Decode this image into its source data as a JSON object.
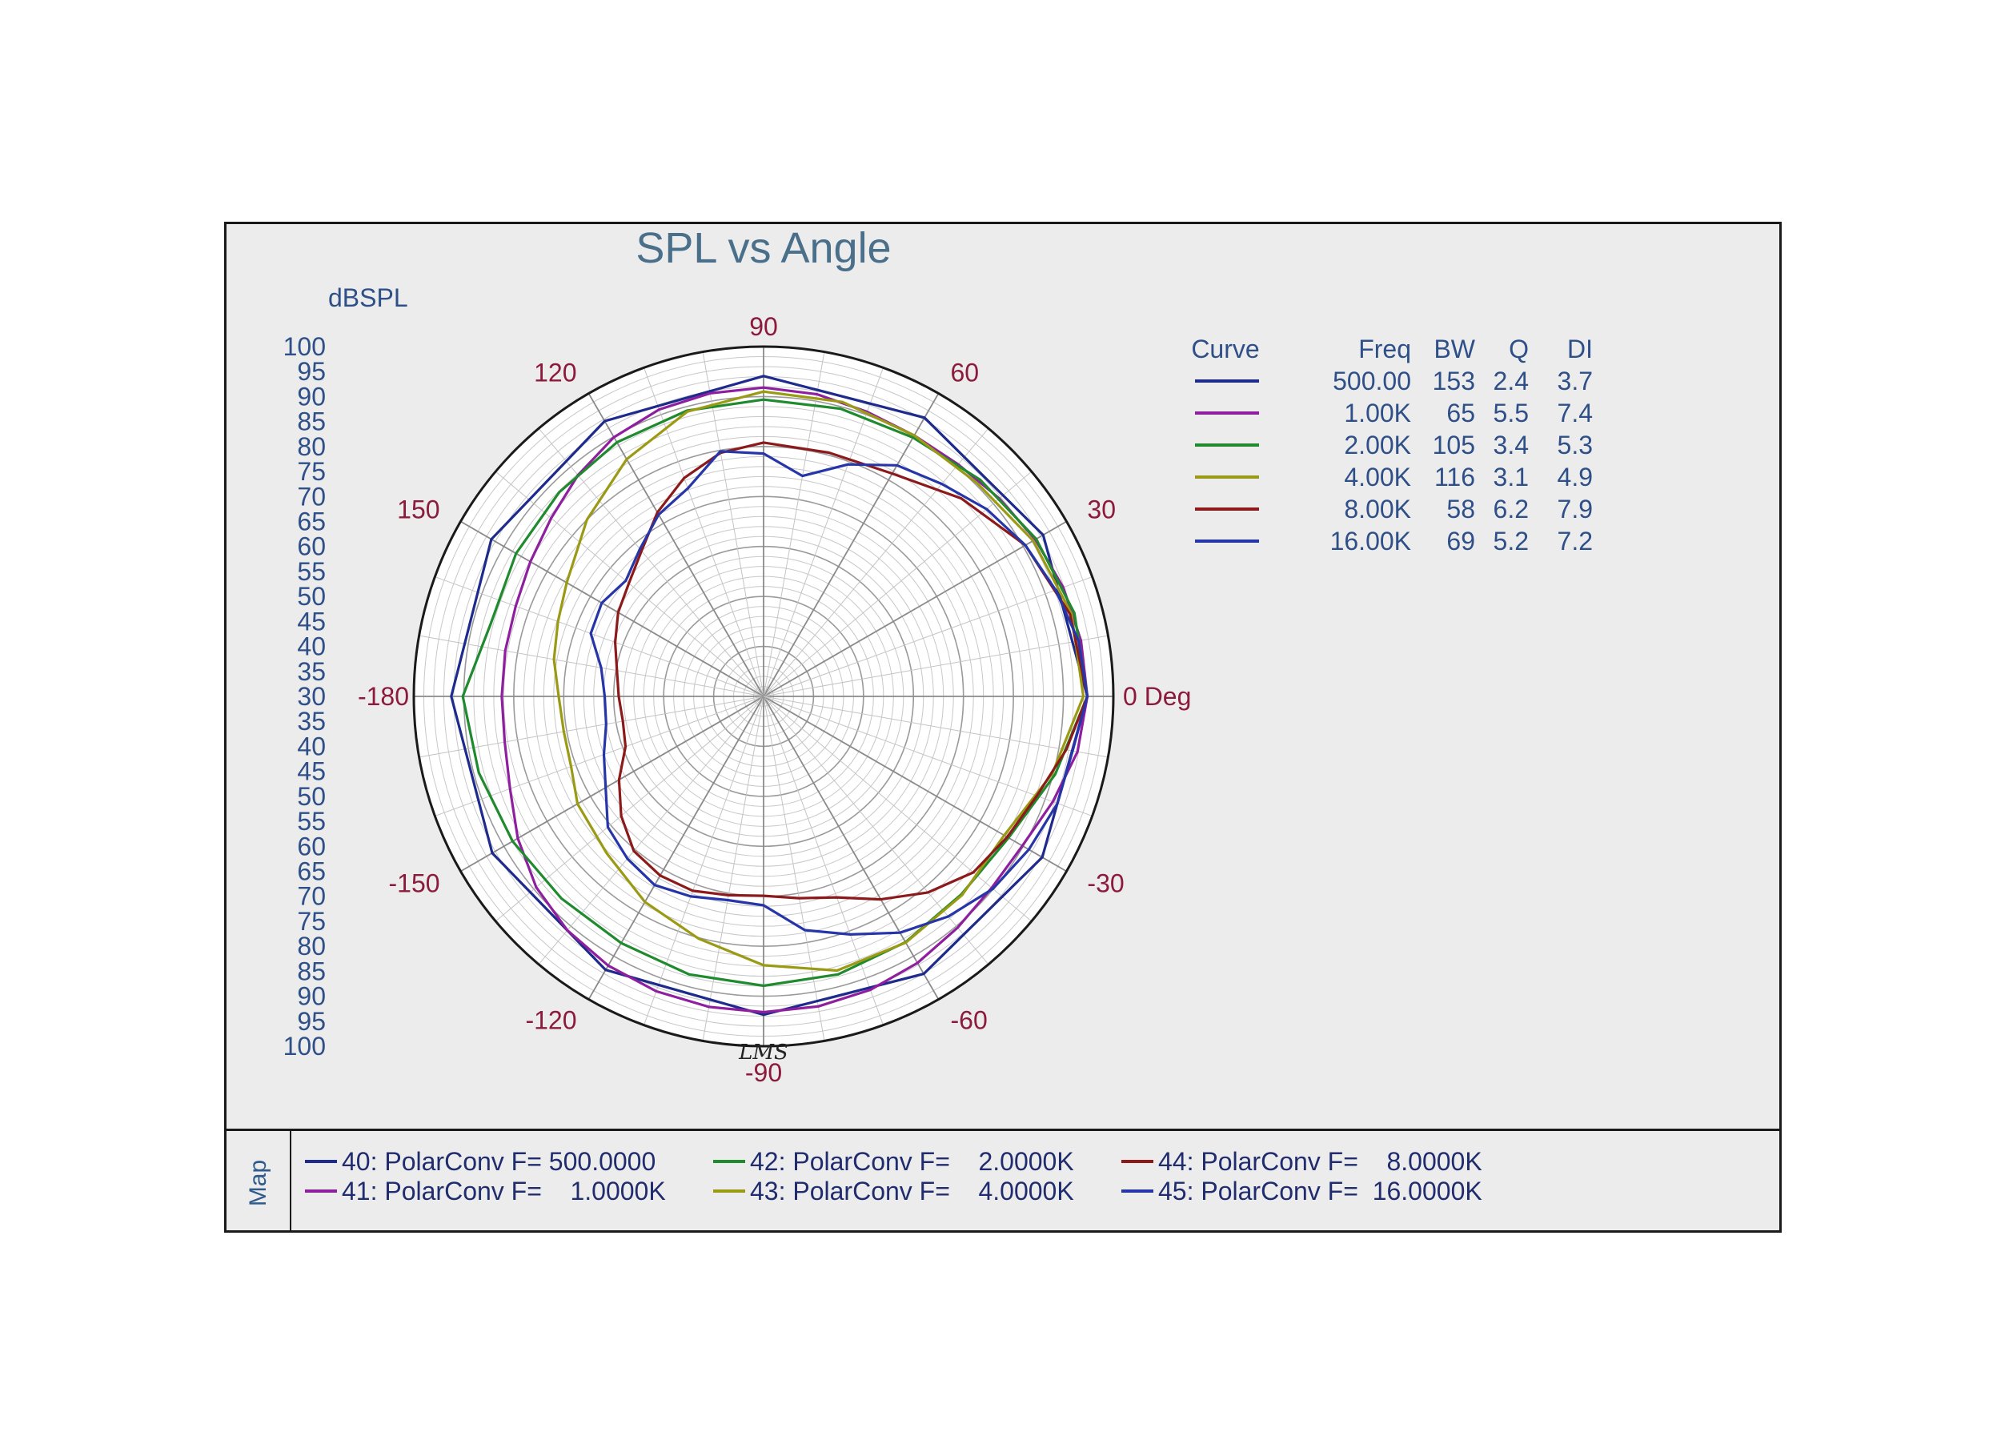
{
  "chart_data": {
    "type": "polar",
    "title": "SPL vs Angle",
    "radial_axis": {
      "label": "dBSPL",
      "range": [
        30,
        100
      ],
      "tick_labels_top": [
        "100",
        "95",
        "90",
        "85",
        "80",
        "75",
        "70",
        "65",
        "60",
        "55",
        "50",
        "45",
        "40",
        "35",
        "30"
      ],
      "tick_labels_bottom": [
        "35",
        "40",
        "45",
        "50",
        "55",
        "60",
        "65",
        "70",
        "75",
        "80",
        "85",
        "90",
        "95",
        "100"
      ]
    },
    "angle_axis": {
      "unit": "Deg",
      "labels": [
        {
          "angle": 0,
          "text": "0 Deg"
        },
        {
          "angle": 30,
          "text": "30"
        },
        {
          "angle": 60,
          "text": "60"
        },
        {
          "angle": 90,
          "text": "90"
        },
        {
          "angle": 120,
          "text": "120"
        },
        {
          "angle": 150,
          "text": "150"
        },
        {
          "angle": 180,
          "text": "-180"
        },
        {
          "angle": -150,
          "text": "-150"
        },
        {
          "angle": -120,
          "text": "-120"
        },
        {
          "angle": -90,
          "text": "-90"
        },
        {
          "angle": -60,
          "text": "-60"
        },
        {
          "angle": -30,
          "text": "-30"
        }
      ],
      "major_step_deg": 30,
      "minor_step_deg": 10
    },
    "grid": true,
    "watermark": "LMS",
    "table": {
      "headers": [
        "Curve",
        "Freq",
        "BW",
        "Q",
        "DI"
      ],
      "rows": [
        {
          "freq": "500.00",
          "bw": "153",
          "q": "2.4",
          "di": "3.7"
        },
        {
          "freq": "1.00K",
          "bw": "65",
          "q": "5.5",
          "di": "7.4"
        },
        {
          "freq": "2.00K",
          "bw": "105",
          "q": "3.4",
          "di": "5.3"
        },
        {
          "freq": "4.00K",
          "bw": "116",
          "q": "3.1",
          "di": "4.9"
        },
        {
          "freq": "8.00K",
          "bw": "58",
          "q": "6.2",
          "di": "7.9"
        },
        {
          "freq": "16.00K",
          "bw": "69",
          "q": "5.2",
          "di": "7.2"
        }
      ]
    },
    "series": [
      {
        "name": "40: PolarConv F= 500.0000",
        "color": "#1e2a8c",
        "points": [
          [
            0,
            94.8
          ],
          [
            30,
            94.6
          ],
          [
            60,
            94.4
          ],
          [
            90,
            94.1
          ],
          [
            120,
            93.6
          ],
          [
            150,
            92.9
          ],
          [
            180,
            92.5
          ],
          [
            -150,
            92.7
          ],
          [
            -120,
            93.2
          ],
          [
            -90,
            93.7
          ],
          [
            -60,
            94.1
          ],
          [
            -30,
            94.4
          ]
        ]
      },
      {
        "name": "41: PolarConv F=    1.0000K",
        "color": "#8e1f9e",
        "points": [
          [
            0,
            94.8
          ],
          [
            10,
            94.5
          ],
          [
            20,
            93.8
          ],
          [
            30,
            92.8
          ],
          [
            40,
            91.6
          ],
          [
            50,
            90.6
          ],
          [
            60,
            90.3
          ],
          [
            70,
            90.6
          ],
          [
            80,
            91.4
          ],
          [
            90,
            91.8
          ],
          [
            100,
            91.6
          ],
          [
            110,
            91.1
          ],
          [
            120,
            89.9
          ],
          [
            130,
            87.8
          ],
          [
            140,
            85.5
          ],
          [
            150,
            83.9
          ],
          [
            160,
            82.8
          ],
          [
            170,
            82.5
          ],
          [
            180,
            82.4
          ],
          [
            -170,
            82.6
          ],
          [
            -160,
            84.0
          ],
          [
            -150,
            86.8
          ],
          [
            -140,
            89.4
          ],
          [
            -130,
            91.1
          ],
          [
            -120,
            92.2
          ],
          [
            -110,
            92.8
          ],
          [
            -100,
            93.1
          ],
          [
            -90,
            93.2
          ],
          [
            -80,
            93.0
          ],
          [
            -70,
            92.5
          ],
          [
            -60,
            91.6
          ],
          [
            -50,
            90.4
          ],
          [
            -40,
            89.6
          ],
          [
            -30,
            89.8
          ],
          [
            -20,
            91.6
          ],
          [
            -10,
            93.8
          ]
        ]
      },
      {
        "name": "42: PolarConv F=    2.0000K",
        "color": "#1f8a2e",
        "points": [
          [
            0,
            94.8
          ],
          [
            15,
            94.4
          ],
          [
            30,
            93.0
          ],
          [
            45,
            91.3
          ],
          [
            60,
            89.8
          ],
          [
            75,
            89.6
          ],
          [
            90,
            89.4
          ],
          [
            105,
            89.2
          ],
          [
            120,
            88.7
          ],
          [
            135,
            87.8
          ],
          [
            150,
            87.2
          ],
          [
            165,
            86.5
          ],
          [
            180,
            90.2
          ],
          [
            -165,
            89.0
          ],
          [
            -150,
            88.0
          ],
          [
            -135,
            87.2
          ],
          [
            -120,
            87.0
          ],
          [
            -105,
            87.6
          ],
          [
            -90,
            87.9
          ],
          [
            -75,
            87.6
          ],
          [
            -60,
            86.8
          ],
          [
            -45,
            86.0
          ],
          [
            -30,
            86.6
          ],
          [
            -15,
            90.4
          ]
        ]
      },
      {
        "name": "43: PolarConv F=    4.0000K",
        "color": "#9a9a14",
        "points": [
          [
            0,
            94.0
          ],
          [
            15,
            93.8
          ],
          [
            30,
            92.3
          ],
          [
            45,
            90.4
          ],
          [
            60,
            90.3
          ],
          [
            75,
            91.0
          ],
          [
            90,
            91.0
          ],
          [
            105,
            89.0
          ],
          [
            120,
            84.8
          ],
          [
            135,
            80.0
          ],
          [
            150,
            75.5
          ],
          [
            160,
            73.8
          ],
          [
            170,
            72.6
          ],
          [
            180,
            71.0
          ],
          [
            -170,
            70.6
          ],
          [
            -160,
            71.0
          ],
          [
            -150,
            73.0
          ],
          [
            -135,
            74.4
          ],
          [
            -120,
            77.5
          ],
          [
            -105,
            80.2
          ],
          [
            -90,
            83.8
          ],
          [
            -75,
            86.8
          ],
          [
            -60,
            86.9
          ],
          [
            -45,
            86.2
          ],
          [
            -30,
            85.6
          ],
          [
            -15,
            89.8
          ]
        ]
      },
      {
        "name": "44: PolarConv F=    8.0000K",
        "color": "#8c1a1a",
        "points": [
          [
            0,
            94.8
          ],
          [
            15,
            93.5
          ],
          [
            30,
            90.5
          ],
          [
            45,
            86.0
          ],
          [
            60,
            81.5
          ],
          [
            75,
            80.5
          ],
          [
            90,
            80.8
          ],
          [
            100,
            79.5
          ],
          [
            110,
            76.5
          ],
          [
            120,
            72.5
          ],
          [
            130,
            68.0
          ],
          [
            140,
            65.2
          ],
          [
            150,
            63.6
          ],
          [
            160,
            61.6
          ],
          [
            170,
            59.8
          ],
          [
            180,
            59.0
          ],
          [
            -170,
            58.6
          ],
          [
            -160,
            59.4
          ],
          [
            -150,
            63.4
          ],
          [
            -140,
            67.2
          ],
          [
            -130,
            70.4
          ],
          [
            -120,
            71.4
          ],
          [
            -110,
            71.4
          ],
          [
            -100,
            70.4
          ],
          [
            -90,
            69.9
          ],
          [
            -80,
            71.0
          ],
          [
            -70,
            72.8
          ],
          [
            -60,
            76.9
          ],
          [
            -50,
            81.2
          ],
          [
            -40,
            84.8
          ],
          [
            -30,
            86.3
          ],
          [
            -20,
            88.2
          ],
          [
            -10,
            91.5
          ]
        ]
      },
      {
        "name": "45: PolarConv F=  16.0000K",
        "color": "#2636a8",
        "points": [
          [
            0,
            94.8
          ],
          [
            10,
            94.0
          ],
          [
            20,
            92.2
          ],
          [
            30,
            90.5
          ],
          [
            40,
            88.3
          ],
          [
            50,
            85.5
          ],
          [
            60,
            83.4
          ],
          [
            70,
            79.4
          ],
          [
            80,
            74.8
          ],
          [
            90,
            78.6
          ],
          [
            100,
            79.8
          ],
          [
            110,
            74.3
          ],
          [
            120,
            72.0
          ],
          [
            130,
            68.5
          ],
          [
            140,
            66.0
          ],
          [
            150,
            67.4
          ],
          [
            160,
            66.8
          ],
          [
            170,
            63.0
          ],
          [
            180,
            61.8
          ],
          [
            -170,
            62.0
          ],
          [
            -160,
            64.0
          ],
          [
            -150,
            66.5
          ],
          [
            -140,
            70.7
          ],
          [
            -130,
            72.4
          ],
          [
            -120,
            73.6
          ],
          [
            -110,
            72.6
          ],
          [
            -100,
            71.4
          ],
          [
            -90,
            71.8
          ],
          [
            -80,
            77.5
          ],
          [
            -70,
            80.7
          ],
          [
            -60,
            84.6
          ],
          [
            -50,
            87.5
          ],
          [
            -40,
            89.9
          ],
          [
            -30,
            91.3
          ],
          [
            -20,
            92.6
          ],
          [
            -10,
            92.8
          ]
        ]
      }
    ]
  }
}
